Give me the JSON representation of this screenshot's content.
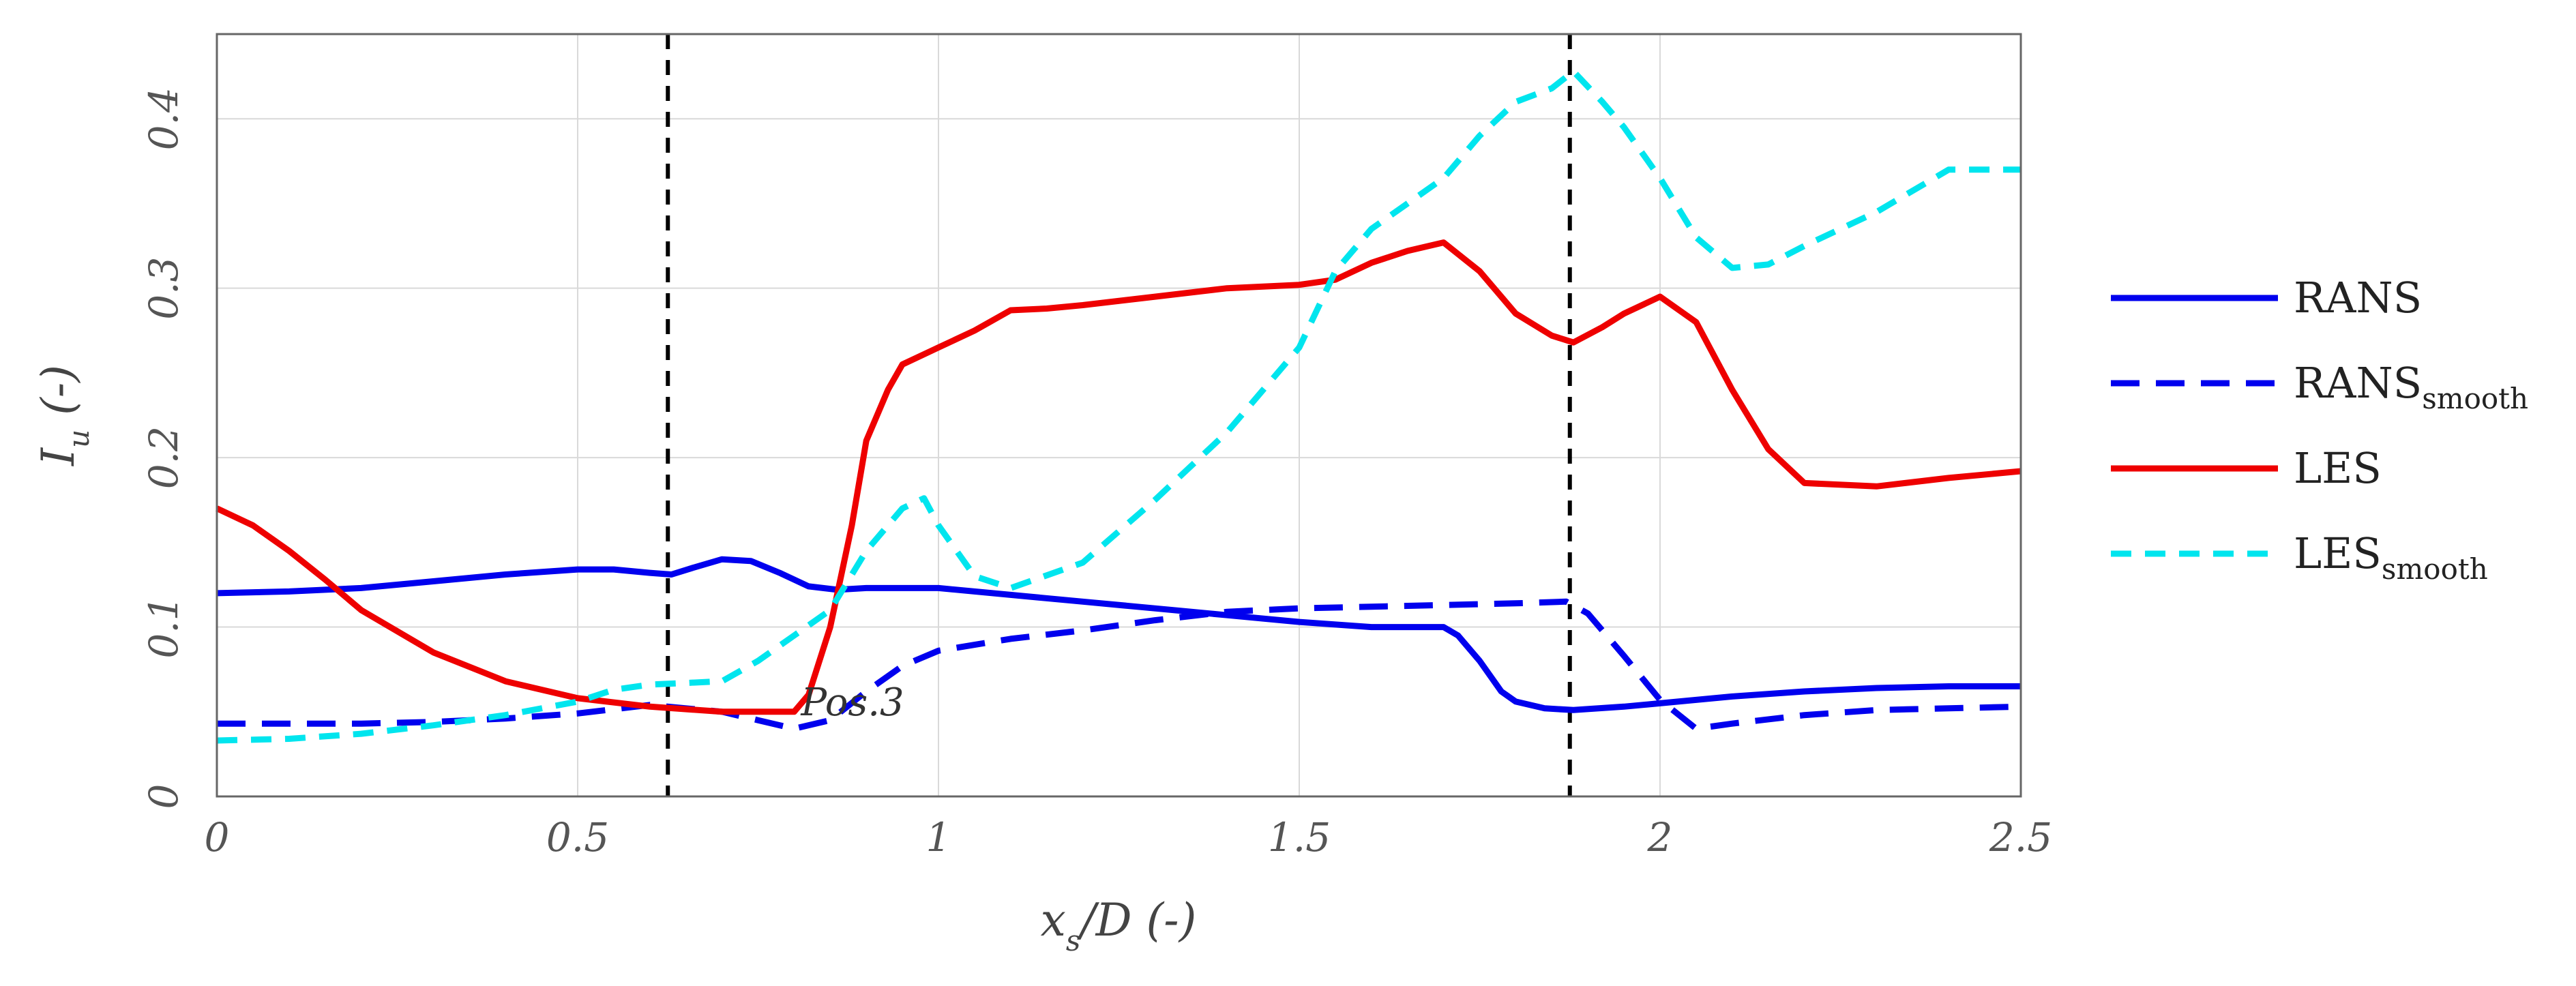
{
  "chart_data": {
    "type": "line",
    "xlabel": {
      "base": "x",
      "sub": "s",
      "rest": "/D (-)"
    },
    "ylabel": {
      "base": "I",
      "sub": "u",
      "rest": " (-)"
    },
    "xlim": [
      0,
      2.5
    ],
    "ylim": [
      0,
      0.45
    ],
    "xticks": [
      0,
      0.5,
      1,
      1.5,
      2,
      2.5
    ],
    "xtick_labels": [
      "0",
      "0.5",
      "1",
      "1.5",
      "2",
      "2.5"
    ],
    "yticks": [
      0,
      0.1,
      0.2,
      0.3,
      0.4
    ],
    "ytick_labels": [
      "0",
      "0.1",
      "0.2",
      "0.3",
      "0.4"
    ],
    "grid": true,
    "legend_position": "right",
    "vlines": [
      0.625,
      1.875
    ],
    "annotation": {
      "text": "Pos.3",
      "x": 0.8,
      "y": 0.052
    },
    "series": [
      {
        "name": "RANS",
        "name_sub": "",
        "color": "#0000ee",
        "dash": "solid",
        "x": [
          0,
          0.1,
          0.2,
          0.3,
          0.4,
          0.5,
          0.55,
          0.6,
          0.63,
          0.66,
          0.7,
          0.74,
          0.78,
          0.82,
          0.86,
          0.9,
          1.0,
          1.1,
          1.2,
          1.3,
          1.4,
          1.5,
          1.6,
          1.7,
          1.72,
          1.75,
          1.78,
          1.8,
          1.84,
          1.88,
          1.95,
          2.0,
          2.1,
          2.2,
          2.3,
          2.4,
          2.5
        ],
        "y": [
          0.12,
          0.121,
          0.123,
          0.127,
          0.131,
          0.134,
          0.134,
          0.132,
          0.131,
          0.135,
          0.14,
          0.139,
          0.132,
          0.124,
          0.122,
          0.123,
          0.123,
          0.119,
          0.115,
          0.111,
          0.107,
          0.103,
          0.1,
          0.1,
          0.095,
          0.08,
          0.062,
          0.056,
          0.052,
          0.051,
          0.053,
          0.055,
          0.059,
          0.062,
          0.064,
          0.065,
          0.065
        ]
      },
      {
        "name": "RANS",
        "name_sub": "smooth",
        "color": "#0000ee",
        "dash": "long",
        "x": [
          0,
          0.1,
          0.2,
          0.3,
          0.4,
          0.5,
          0.6,
          0.7,
          0.75,
          0.8,
          0.85,
          0.9,
          0.95,
          1.0,
          1.1,
          1.2,
          1.3,
          1.4,
          1.5,
          1.6,
          1.7,
          1.8,
          1.87,
          1.9,
          1.95,
          2.0,
          2.05,
          2.1,
          2.2,
          2.3,
          2.4,
          2.5
        ],
        "y": [
          0.043,
          0.043,
          0.043,
          0.044,
          0.046,
          0.049,
          0.054,
          0.05,
          0.045,
          0.04,
          0.045,
          0.062,
          0.077,
          0.086,
          0.093,
          0.098,
          0.104,
          0.109,
          0.111,
          0.112,
          0.113,
          0.114,
          0.115,
          0.108,
          0.083,
          0.057,
          0.04,
          0.043,
          0.048,
          0.051,
          0.052,
          0.053
        ]
      },
      {
        "name": "LES",
        "name_sub": "",
        "color": "#ee0000",
        "dash": "solid",
        "x": [
          0,
          0.05,
          0.1,
          0.15,
          0.2,
          0.3,
          0.4,
          0.5,
          0.6,
          0.7,
          0.8,
          0.82,
          0.85,
          0.88,
          0.9,
          0.93,
          0.95,
          1.0,
          1.05,
          1.1,
          1.15,
          1.2,
          1.3,
          1.4,
          1.5,
          1.55,
          1.6,
          1.65,
          1.7,
          1.75,
          1.8,
          1.85,
          1.88,
          1.92,
          1.95,
          2.0,
          2.05,
          2.1,
          2.15,
          2.2,
          2.3,
          2.4,
          2.5
        ],
        "y": [
          0.17,
          0.16,
          0.145,
          0.128,
          0.11,
          0.085,
          0.068,
          0.058,
          0.053,
          0.05,
          0.05,
          0.06,
          0.1,
          0.16,
          0.21,
          0.24,
          0.255,
          0.265,
          0.275,
          0.287,
          0.288,
          0.29,
          0.295,
          0.3,
          0.302,
          0.305,
          0.315,
          0.322,
          0.327,
          0.31,
          0.285,
          0.272,
          0.268,
          0.277,
          0.285,
          0.295,
          0.28,
          0.24,
          0.205,
          0.185,
          0.183,
          0.188,
          0.192
        ]
      },
      {
        "name": "LES",
        "name_sub": "smooth",
        "color": "#00e5ee",
        "dash": "medium",
        "x": [
          0,
          0.1,
          0.2,
          0.3,
          0.4,
          0.5,
          0.55,
          0.6,
          0.7,
          0.75,
          0.8,
          0.85,
          0.9,
          0.95,
          0.98,
          1.0,
          1.05,
          1.1,
          1.2,
          1.3,
          1.4,
          1.5,
          1.55,
          1.6,
          1.7,
          1.75,
          1.8,
          1.85,
          1.88,
          1.92,
          1.95,
          2.0,
          2.05,
          2.1,
          2.15,
          2.2,
          2.3,
          2.4,
          2.5
        ],
        "y": [
          0.033,
          0.034,
          0.037,
          0.042,
          0.048,
          0.056,
          0.063,
          0.066,
          0.068,
          0.08,
          0.095,
          0.11,
          0.145,
          0.17,
          0.176,
          0.16,
          0.13,
          0.123,
          0.138,
          0.175,
          0.215,
          0.265,
          0.31,
          0.335,
          0.365,
          0.39,
          0.41,
          0.418,
          0.428,
          0.41,
          0.395,
          0.365,
          0.33,
          0.312,
          0.314,
          0.325,
          0.345,
          0.37,
          0.37
        ]
      }
    ]
  }
}
